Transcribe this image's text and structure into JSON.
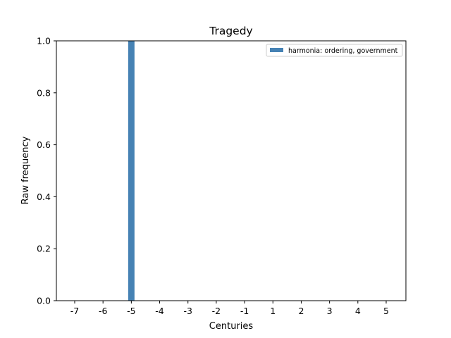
{
  "chart_data": {
    "type": "bar",
    "title": "Tragedy",
    "xlabel": "Centuries",
    "ylabel": "Raw frequency",
    "categories": [
      "-7",
      "-6",
      "-5",
      "-4",
      "-3",
      "-2",
      "-1",
      "1",
      "2",
      "3",
      "4",
      "5"
    ],
    "series": [
      {
        "name": "harmonia: ordering, government",
        "color": "#4682b4",
        "values": [
          0,
          0,
          1,
          0,
          0,
          0,
          0,
          0,
          0,
          0,
          0,
          0
        ]
      }
    ],
    "ylim": [
      0,
      1.0
    ],
    "yticks": [
      "0.0",
      "0.2",
      "0.4",
      "0.6",
      "0.8",
      "1.0"
    ],
    "grid": false,
    "legend_position": "top-right"
  }
}
